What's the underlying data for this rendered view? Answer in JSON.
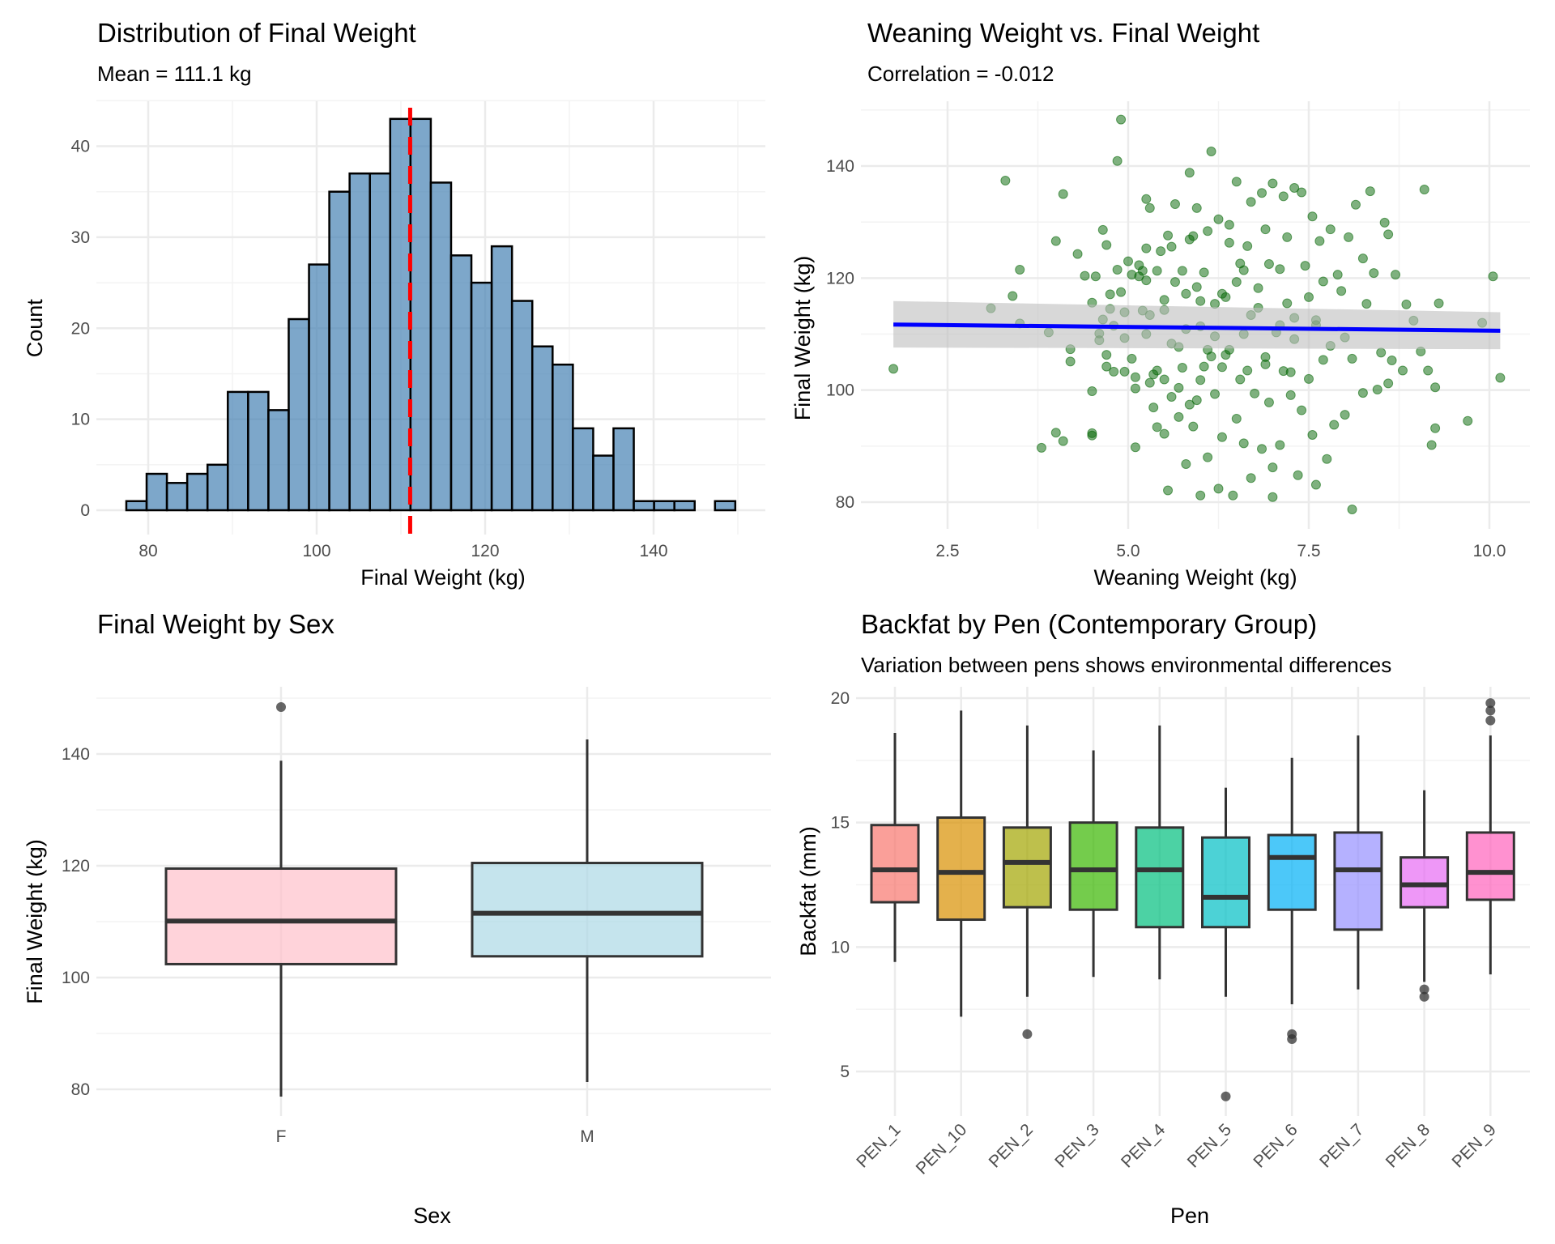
{
  "chart_data": [
    {
      "id": "hist",
      "type": "bar",
      "title": "Distribution of Final Weight",
      "subtitle": "Mean = 111.1 kg",
      "xlabel": "Final Weight (kg)",
      "ylabel": "Count",
      "xlim": [
        75,
        152
      ],
      "ylim": [
        0,
        45
      ],
      "xticks": [
        80,
        100,
        120,
        140
      ],
      "yticks": [
        0,
        10,
        20,
        30,
        40
      ],
      "grid": true,
      "bin_start": 77.4,
      "bin_width": 2.41,
      "counts": [
        1,
        4,
        3,
        4,
        5,
        13,
        13,
        11,
        21,
        27,
        35,
        37,
        37,
        43,
        43,
        36,
        28,
        25,
        29,
        23,
        18,
        16,
        9,
        6,
        9,
        1,
        1,
        1,
        0,
        1
      ],
      "mean_line": 111.1,
      "colors": {
        "fill": "#4682b4",
        "stroke": "#000000",
        "mean": "#ff0000"
      }
    },
    {
      "id": "scatter",
      "type": "scatter",
      "title": "Weaning Weight vs. Final Weight",
      "subtitle": "Correlation = -0.012",
      "xlabel": "Weaning Weight (kg)",
      "ylabel": "Final Weight (kg)",
      "xlim": [
        1.3,
        10.5
      ],
      "ylim": [
        77,
        151
      ],
      "xticks": [
        2.5,
        5.0,
        7.5,
        10.0
      ],
      "xtick_labels": [
        "2.5",
        "5.0",
        "7.5",
        "10.0"
      ],
      "yticks": [
        80,
        100,
        120,
        140
      ],
      "grid": true,
      "fit": {
        "x": [
          1.75,
          10.15
        ],
        "y": [
          111.7,
          110.6
        ],
        "ci_low": [
          107.6,
          107.3
        ],
        "ci_high": [
          115.9,
          113.9
        ]
      },
      "colors": {
        "point": "#006400",
        "fit": "#0000ff",
        "ci": "#bebebe"
      },
      "points": [
        [
          1.75,
          103.8
        ],
        [
          3.1,
          114.6
        ],
        [
          3.3,
          137.4
        ],
        [
          3.4,
          116.8
        ],
        [
          3.5,
          121.5
        ],
        [
          3.5,
          111.9
        ],
        [
          3.8,
          89.7
        ],
        [
          3.9,
          110.3
        ],
        [
          4.0,
          92.4
        ],
        [
          4.0,
          126.6
        ],
        [
          4.1,
          135
        ],
        [
          4.1,
          90.9
        ],
        [
          4.3,
          124.3
        ],
        [
          4.2,
          107.3
        ],
        [
          4.2,
          105.1
        ],
        [
          4.4,
          120.4
        ],
        [
          4.5,
          115.6
        ],
        [
          4.5,
          99.8
        ],
        [
          4.5,
          92.3
        ],
        [
          4.5,
          91.9
        ],
        [
          4.55,
          120.3
        ],
        [
          4.6,
          110.1
        ],
        [
          4.6,
          108.9
        ],
        [
          4.65,
          112.6
        ],
        [
          4.65,
          128.6
        ],
        [
          4.7,
          104.2
        ],
        [
          4.7,
          106.3
        ],
        [
          4.7,
          125.9
        ],
        [
          4.75,
          114.5
        ],
        [
          4.75,
          117.1
        ],
        [
          4.8,
          111.5
        ],
        [
          4.8,
          103.3
        ],
        [
          4.85,
          121.5
        ],
        [
          4.85,
          140.9
        ],
        [
          4.9,
          117.5
        ],
        [
          4.9,
          148.3
        ],
        [
          4.95,
          113.9
        ],
        [
          4.95,
          103.3
        ],
        [
          4.95,
          109.3
        ],
        [
          5.0,
          123
        ],
        [
          5.05,
          120.6
        ],
        [
          5.05,
          105.6
        ],
        [
          5.1,
          89.8
        ],
        [
          5.1,
          100.3
        ],
        [
          5.1,
          102.3
        ],
        [
          5.15,
          122.3
        ],
        [
          5.15,
          120.3
        ],
        [
          5.2,
          114.2
        ],
        [
          5.2,
          121.3
        ],
        [
          5.25,
          125.3
        ],
        [
          5.25,
          110
        ],
        [
          5.25,
          119.6
        ],
        [
          5.25,
          134.1
        ],
        [
          5.3,
          101.3
        ],
        [
          5.3,
          132.5
        ],
        [
          5.3,
          113.4
        ],
        [
          5.35,
          96.9
        ],
        [
          5.35,
          102.8
        ],
        [
          5.4,
          103.5
        ],
        [
          5.4,
          93.4
        ],
        [
          5.4,
          121.3
        ],
        [
          5.45,
          124.8
        ],
        [
          5.5,
          92.2
        ],
        [
          5.5,
          114.3
        ],
        [
          5.5,
          101.9
        ],
        [
          5.5,
          116.1
        ],
        [
          5.55,
          82.1
        ],
        [
          5.55,
          127.6
        ],
        [
          5.6,
          125.6
        ],
        [
          5.6,
          98.8
        ],
        [
          5.65,
          133.2
        ],
        [
          5.65,
          119.3
        ],
        [
          5.7,
          100.4
        ],
        [
          5.7,
          95.2
        ],
        [
          5.7,
          107.7
        ],
        [
          5.75,
          121.3
        ],
        [
          5.75,
          104
        ],
        [
          5.8,
          117.2
        ],
        [
          5.8,
          86.8
        ],
        [
          5.85,
          138.8
        ],
        [
          5.85,
          126.9
        ],
        [
          5.85,
          97.4
        ],
        [
          5.9,
          127.5
        ],
        [
          5.9,
          93.5
        ],
        [
          5.95,
          132.5
        ],
        [
          5.95,
          118.4
        ],
        [
          6.0,
          101.8
        ],
        [
          6.0,
          111.4
        ],
        [
          6.0,
          81.2
        ],
        [
          6.05,
          104.2
        ],
        [
          6.05,
          121
        ],
        [
          6.1,
          128.4
        ],
        [
          6.1,
          88
        ],
        [
          6.1,
          107.2
        ],
        [
          6.15,
          142.6
        ],
        [
          6.15,
          106
        ],
        [
          6.2,
          99.3
        ],
        [
          6.2,
          115.4
        ],
        [
          6.25,
          130.5
        ],
        [
          6.25,
          82.4
        ],
        [
          6.3,
          104.1
        ],
        [
          6.3,
          91.6
        ],
        [
          6.35,
          116.6
        ],
        [
          6.35,
          106.3
        ],
        [
          6.4,
          126.3
        ],
        [
          6.4,
          129.5
        ],
        [
          6.45,
          81.2
        ],
        [
          6.5,
          119.3
        ],
        [
          6.5,
          94.9
        ],
        [
          6.5,
          137.2
        ],
        [
          6.55,
          122.6
        ],
        [
          6.6,
          110
        ],
        [
          6.6,
          90.5
        ],
        [
          6.65,
          125.7
        ],
        [
          6.65,
          103.5
        ],
        [
          6.7,
          133.6
        ],
        [
          6.7,
          84.3
        ],
        [
          6.75,
          99.4
        ],
        [
          6.8,
          118.2
        ],
        [
          6.8,
          114.7
        ],
        [
          6.85,
          135.2
        ],
        [
          6.85,
          89.5
        ],
        [
          6.9,
          128.7
        ],
        [
          6.9,
          104.6
        ],
        [
          6.95,
          122.5
        ],
        [
          6.95,
          97.8
        ],
        [
          7.0,
          136.9
        ],
        [
          7.0,
          86.2
        ],
        [
          7.0,
          80.9
        ],
        [
          7.05,
          110.3
        ],
        [
          7.1,
          121.6
        ],
        [
          7.1,
          90.2
        ],
        [
          7.15,
          134.6
        ],
        [
          7.15,
          103.4
        ],
        [
          7.2,
          127.3
        ],
        [
          7.2,
          115.5
        ],
        [
          7.25,
          99.1
        ],
        [
          7.3,
          136.1
        ],
        [
          7.3,
          109.1
        ],
        [
          7.35,
          84.8
        ],
        [
          7.4,
          135.3
        ],
        [
          7.4,
          96.4
        ],
        [
          7.45,
          122.2
        ],
        [
          7.5,
          116.6
        ],
        [
          7.5,
          102
        ],
        [
          7.55,
          131
        ],
        [
          7.55,
          92
        ],
        [
          7.6,
          112.5
        ],
        [
          7.6,
          83.1
        ],
        [
          7.65,
          126.6
        ],
        [
          7.7,
          119.4
        ],
        [
          7.7,
          105.4
        ],
        [
          7.75,
          87.7
        ],
        [
          7.8,
          128.7
        ],
        [
          7.8,
          107.9
        ],
        [
          7.85,
          93.8
        ],
        [
          7.9,
          120.6
        ],
        [
          7.95,
          117.7
        ],
        [
          8.0,
          95.6
        ],
        [
          8.0,
          109.4
        ],
        [
          8.05,
          127.3
        ],
        [
          8.1,
          78.7
        ],
        [
          8.1,
          105.6
        ],
        [
          8.15,
          133.1
        ],
        [
          8.25,
          123.5
        ],
        [
          8.25,
          99.5
        ],
        [
          8.3,
          115.4
        ],
        [
          8.35,
          135.5
        ],
        [
          8.4,
          120.9
        ],
        [
          8.45,
          100.1
        ],
        [
          8.5,
          106.7
        ],
        [
          8.55,
          129.9
        ],
        [
          8.6,
          127.8
        ],
        [
          8.6,
          101.2
        ],
        [
          8.65,
          105.3
        ],
        [
          8.7,
          120.6
        ],
        [
          8.8,
          103.5
        ],
        [
          8.85,
          115.3
        ],
        [
          8.95,
          112.4
        ],
        [
          9.05,
          106.9
        ],
        [
          9.1,
          135.8
        ],
        [
          9.15,
          103.5
        ],
        [
          9.2,
          90.2
        ],
        [
          9.25,
          93.2
        ],
        [
          9.25,
          100.5
        ],
        [
          9.3,
          115.5
        ],
        [
          9.7,
          94.5
        ],
        [
          9.9,
          112
        ],
        [
          10.05,
          120.3
        ],
        [
          10.15,
          102.2
        ],
        [
          6.6,
          121.4
        ],
        [
          6.3,
          117.2
        ],
        [
          6.7,
          113.4
        ],
        [
          7.1,
          111.6
        ],
        [
          6.2,
          109.6
        ],
        [
          6.4,
          107.2
        ],
        [
          6.9,
          105.9
        ],
        [
          5.8,
          110.9
        ],
        [
          7.3,
          112.9
        ],
        [
          6.0,
          115.9
        ],
        [
          5.6,
          108.3
        ],
        [
          7.6,
          111.6
        ],
        [
          6.55,
          101.9
        ],
        [
          5.95,
          98.2
        ],
        [
          7.25,
          103.2
        ]
      ]
    },
    {
      "id": "sex",
      "type": "box",
      "title": "Final Weight by Sex",
      "xlabel": "Sex",
      "ylabel": "Final Weight (kg)",
      "ylim": [
        75,
        152
      ],
      "yticks": [
        80,
        100,
        120,
        140
      ],
      "grid": true,
      "categories": [
        "F",
        "M"
      ],
      "boxes": [
        {
          "label": "F",
          "min": 78.7,
          "q1": 102.4,
          "median": 110.1,
          "q3": 119.5,
          "max": 138.8,
          "outliers": [
            148.4
          ],
          "fill": "#ffc0cb"
        },
        {
          "label": "M",
          "min": 81.3,
          "q1": 103.8,
          "median": 111.5,
          "q3": 120.5,
          "max": 142.6,
          "outliers": [],
          "fill": "#add8e6"
        }
      ]
    },
    {
      "id": "pen",
      "type": "box",
      "title": "Backfat by Pen (Contemporary Group)",
      "subtitle": "Variation between pens shows environmental differences",
      "xlabel": "Pen",
      "ylabel": "Backfat (mm)",
      "ylim": [
        3.2,
        20.9
      ],
      "yticks": [
        5,
        10,
        15,
        20
      ],
      "grid": true,
      "categories": [
        "PEN_1",
        "PEN_10",
        "PEN_2",
        "PEN_3",
        "PEN_4",
        "PEN_5",
        "PEN_6",
        "PEN_7",
        "PEN_8",
        "PEN_9"
      ],
      "boxes": [
        {
          "label": "PEN_1",
          "min": 9.4,
          "q1": 11.8,
          "median": 13.1,
          "q3": 14.9,
          "max": 18.6,
          "outliers": [],
          "fill": "#f8766d"
        },
        {
          "label": "PEN_10",
          "min": 7.2,
          "q1": 11.1,
          "median": 13.0,
          "q3": 15.2,
          "max": 19.5,
          "outliers": [],
          "fill": "#d89000"
        },
        {
          "label": "PEN_2",
          "min": 8.0,
          "q1": 11.6,
          "median": 13.4,
          "q3": 14.8,
          "max": 18.9,
          "outliers": [
            6.5
          ],
          "fill": "#a3a500"
        },
        {
          "label": "PEN_3",
          "min": 8.8,
          "q1": 11.5,
          "median": 13.1,
          "q3": 15.0,
          "max": 17.9,
          "outliers": [],
          "fill": "#39b600"
        },
        {
          "label": "PEN_4",
          "min": 8.7,
          "q1": 10.8,
          "median": 13.1,
          "q3": 14.8,
          "max": 18.9,
          "outliers": [],
          "fill": "#00bf7d"
        },
        {
          "label": "PEN_5",
          "min": 8.0,
          "q1": 10.8,
          "median": 12.0,
          "q3": 14.4,
          "max": 16.4,
          "outliers": [
            4.0
          ],
          "fill": "#00bfc4"
        },
        {
          "label": "PEN_6",
          "min": 7.7,
          "q1": 11.5,
          "median": 13.6,
          "q3": 14.5,
          "max": 17.6,
          "outliers": [
            6.5,
            6.3
          ],
          "fill": "#00b0f6"
        },
        {
          "label": "PEN_7",
          "min": 8.3,
          "q1": 10.7,
          "median": 13.1,
          "q3": 14.6,
          "max": 18.5,
          "outliers": [],
          "fill": "#9590ff"
        },
        {
          "label": "PEN_8",
          "min": 8.6,
          "q1": 11.6,
          "median": 12.5,
          "q3": 13.6,
          "max": 16.3,
          "outliers": [
            8.3,
            8.0
          ],
          "fill": "#e76bf3"
        },
        {
          "label": "PEN_9",
          "min": 8.9,
          "q1": 11.9,
          "median": 13.0,
          "q3": 14.6,
          "max": 18.5,
          "outliers": [
            19.8,
            19.5,
            19.1
          ],
          "fill": "#ff62bc"
        }
      ]
    }
  ]
}
